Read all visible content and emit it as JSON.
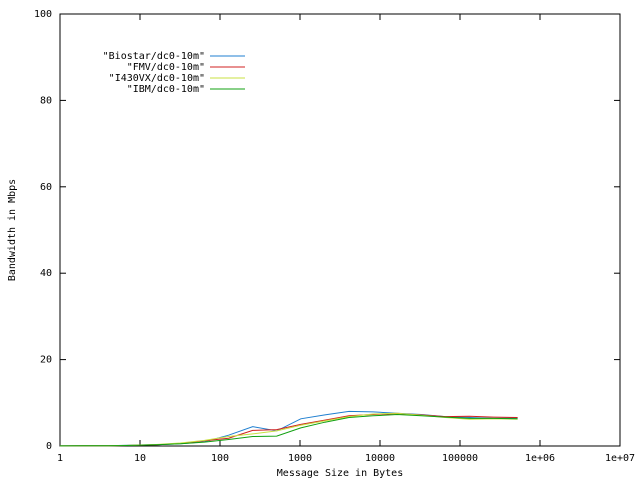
{
  "chart_data": {
    "type": "line",
    "xlabel": "Message Size in Bytes",
    "ylabel": "Bandwidth in Mbps",
    "xlog": true,
    "xlim": [
      1,
      10000000
    ],
    "xticks": [
      1,
      10,
      100,
      1000,
      10000,
      100000,
      {
        "value": 1000000,
        "label": "1e+06"
      },
      {
        "value": 10000000,
        "label": "1e+07"
      }
    ],
    "ylim": [
      0,
      100
    ],
    "yticks": [
      0,
      20,
      40,
      60,
      80,
      100
    ],
    "legend": "top left",
    "x": [
      1,
      2,
      4,
      8,
      16,
      32,
      64,
      128,
      256,
      512,
      1024,
      2048,
      4096,
      8192,
      16384,
      32768,
      65536,
      131072,
      262144,
      524288
    ],
    "series": [
      {
        "name": "\"Biostar/dc0-10m\"",
        "color": "#1f7fd0",
        "values": [
          0.02,
          0.04,
          0.08,
          0.2,
          0.3,
          0.5,
          1.0,
          2.5,
          4.5,
          3.5,
          6.3,
          7.2,
          8.0,
          7.9,
          7.6,
          7.3,
          6.8,
          6.6,
          6.4,
          6.5
        ]
      },
      {
        "name": "\"FMV/dc0-10m\"",
        "color": "#d02020",
        "values": [
          0.02,
          0.04,
          0.08,
          0.15,
          0.3,
          0.6,
          1.2,
          1.8,
          3.6,
          3.8,
          5.0,
          6.0,
          7.0,
          7.3,
          7.5,
          7.2,
          6.8,
          6.9,
          6.7,
          6.6
        ]
      },
      {
        "name": "\"I430VX/dc0-10m\"",
        "color": "#c8e040",
        "values": [
          0.02,
          0.04,
          0.08,
          0.16,
          0.35,
          0.7,
          1.3,
          2.2,
          2.8,
          3.5,
          4.8,
          5.8,
          6.8,
          7.4,
          7.6,
          7.1,
          6.6,
          6.2,
          6.3,
          6.2
        ]
      },
      {
        "name": "\"IBM/dc0-10m\"",
        "color": "#10a010",
        "values": [
          0.02,
          0.04,
          0.07,
          0.14,
          0.28,
          0.5,
          0.9,
          1.5,
          2.2,
          2.3,
          4.2,
          5.5,
          6.6,
          7.0,
          7.3,
          7.0,
          6.7,
          6.4,
          6.4,
          6.3
        ]
      }
    ]
  }
}
